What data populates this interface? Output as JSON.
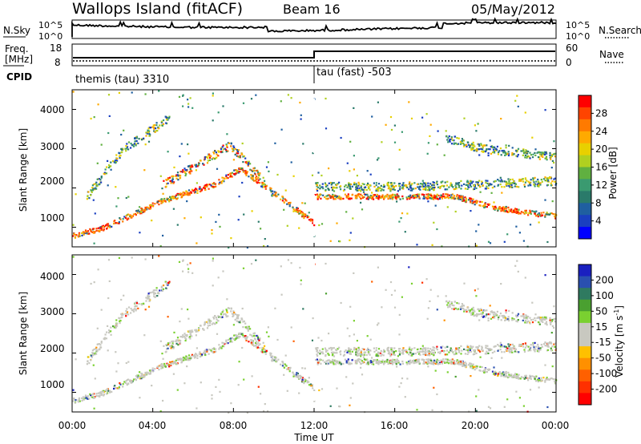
{
  "header": {
    "site": "Wallops Island (fitACF)",
    "beam": "Beam 16",
    "date": "05/May/2012"
  },
  "noise_panel": {
    "left_label": "N.Sky",
    "left_ticks": [
      "10^5",
      "10^0"
    ],
    "right_ticks": [
      "10^5",
      "10^0"
    ],
    "right_label": "N.Search"
  },
  "freq_panel": {
    "left_label_line1": "Freq.",
    "left_label_line2": "[MHz]",
    "left_ticks": [
      "18",
      "8"
    ],
    "right_ticks": [
      "60",
      "0"
    ],
    "right_label": "Nave",
    "cpid_label": "CPID",
    "cpid_1": "themis (tau) 3310",
    "cpid_2": "tau (fast) -503"
  },
  "x_axis": {
    "label": "Time UT",
    "ticks": [
      "00:00",
      "04:00",
      "08:00",
      "12:00",
      "16:00",
      "20:00",
      "00:00"
    ]
  },
  "range_ticks": [
    "1000",
    "2000",
    "3000",
    "4000"
  ],
  "power_panel": {
    "ylabel": "Slant Range [km]",
    "cbar_label": "Power [dB]",
    "cbar_ticks": [
      "28",
      "24",
      "20",
      "16",
      "12",
      "8",
      "4"
    ],
    "cbar_colors": [
      "#ff0000",
      "#ff4400",
      "#ff7a00",
      "#ffaa00",
      "#e8d000",
      "#b0d020",
      "#60b040",
      "#3a9a70",
      "#2a7a6a",
      "#1f5fa0",
      "#1a3fc0",
      "#0000ff"
    ]
  },
  "velocity_panel": {
    "ylabel": "Slant Range [km]",
    "cbar_label_main": "Velocity [m s",
    "cbar_label_sup": "-1",
    "cbar_label_end": "]",
    "cbar_ticks": [
      "200",
      "100",
      "50",
      "15",
      "-15",
      "-50",
      "-100",
      "-200"
    ],
    "cbar_colors": [
      "#1a20c0",
      "#2a50b0",
      "#2f7a60",
      "#4aa030",
      "#7ad030",
      "#c8c8c0",
      "#c8c8c0",
      "#ffc000",
      "#ff9000",
      "#ff6000",
      "#ff3000",
      "#ff0000"
    ]
  },
  "chart_data": {
    "type": "heatmap",
    "title": "Wallops Island (fitACF) Beam 16 05/May/2012",
    "xlabel": "Time UT",
    "ylabel": "Slant Range [km]",
    "xlim_hours": [
      0,
      24
    ],
    "ylim_km": [
      500,
      4500
    ],
    "power_cbar_label": "Power [dB]",
    "velocity_cbar_label": "Velocity [m s^-1]",
    "scatter_bands": [
      {
        "name": "band_a",
        "segments": [
          [
            0.0,
            800,
            1.5,
            1000
          ],
          [
            1.5,
            1000,
            4.5,
            1700
          ],
          [
            4.5,
            1700,
            7.0,
            2100
          ],
          [
            7.0,
            2100,
            8.3,
            2500
          ],
          [
            8.3,
            2500,
            10.5,
            1700
          ],
          [
            10.5,
            1700,
            12.0,
            1100
          ]
        ]
      },
      {
        "name": "band_b",
        "segments": [
          [
            0.7,
            1800,
            2.5,
            3000
          ],
          [
            2.5,
            3000,
            4.8,
            3800
          ]
        ]
      },
      {
        "name": "band_c",
        "segments": [
          [
            4.5,
            2100,
            6.5,
            2700
          ],
          [
            6.5,
            2700,
            7.8,
            3100
          ],
          [
            7.8,
            3100,
            9.5,
            2200
          ]
        ]
      },
      {
        "name": "band_d",
        "segments": [
          [
            12.0,
            1800,
            16.0,
            1800
          ],
          [
            16.0,
            1800,
            19.0,
            1800
          ],
          [
            19.0,
            1800,
            21.0,
            1500
          ],
          [
            21.0,
            1500,
            24.0,
            1300
          ]
        ]
      },
      {
        "name": "band_e",
        "segments": [
          [
            12.0,
            2050,
            16.0,
            2050
          ],
          [
            16.0,
            2050,
            20.0,
            2100
          ],
          [
            20.0,
            2100,
            24.0,
            2200
          ]
        ]
      },
      {
        "name": "band_f",
        "segments": [
          [
            18.5,
            3300,
            20.0,
            3050
          ],
          [
            20.0,
            3050,
            24.0,
            2800
          ]
        ]
      }
    ]
  }
}
